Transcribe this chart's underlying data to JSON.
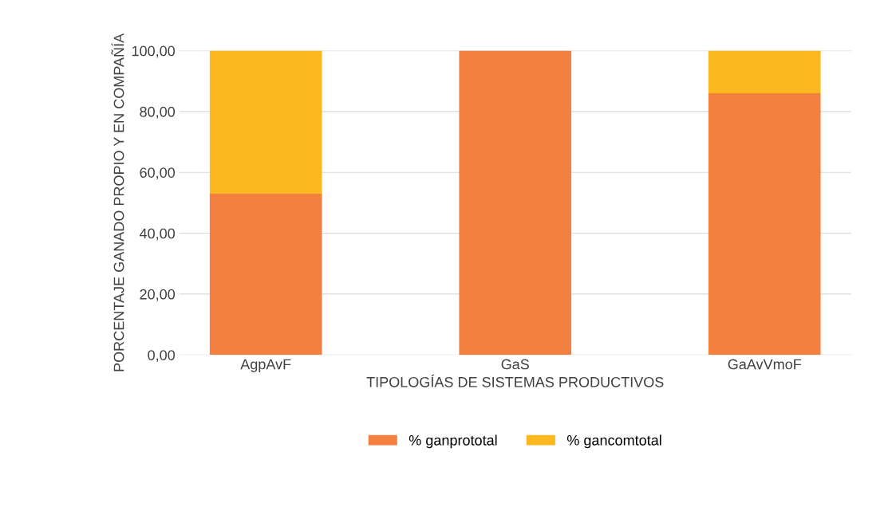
{
  "chart_data": {
    "type": "bar",
    "stacked": true,
    "xlabel": "TIPOLOGÍAS DE SISTEMAS PRODUCTIVOS",
    "ylabel": "PORCENTAJE GANADO PROPIO Y EN COMPAÑÍA",
    "categories": [
      "AgpAvF",
      "GaS",
      "GaAvVmoF"
    ],
    "series": [
      {
        "name": "% ganprototal",
        "color": "#f4803f",
        "values": [
          53,
          100,
          86
        ]
      },
      {
        "name": "% gancomtotal",
        "color": "#fbb91f",
        "values": [
          47,
          0,
          14
        ]
      }
    ],
    "ylim": [
      0,
      100
    ],
    "yticks": [
      {
        "value": 0,
        "label": "0,00"
      },
      {
        "value": 20,
        "label": "20,00"
      },
      {
        "value": 40,
        "label": "40,00"
      },
      {
        "value": 60,
        "label": "60,00"
      },
      {
        "value": 80,
        "label": "80,00"
      },
      {
        "value": 100,
        "label": "100,00"
      }
    ],
    "grid": "y",
    "legend": "bottom"
  }
}
